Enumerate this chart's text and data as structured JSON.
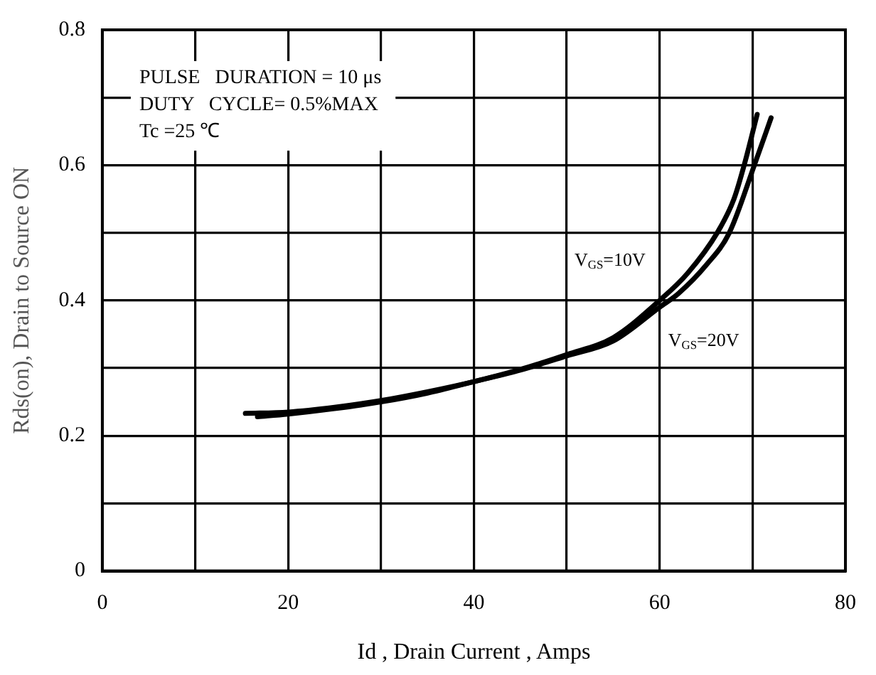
{
  "chart_data": {
    "type": "line",
    "xlabel": "Id , Drain Current , Amps",
    "ylabel": "Rds(on), Drain to Source ON",
    "annotations": [
      "PULSE   DURATION = 10 μs",
      "DUTY   CYCLE= 0.5%MAX",
      "Tc =25 ℃"
    ],
    "xlim": [
      0,
      80
    ],
    "xticks": [
      0,
      {
        "value": 10,
        "label": null
      },
      20,
      {
        "value": 30,
        "label": null
      },
      40,
      {
        "value": 50,
        "label": null
      },
      60,
      {
        "value": 70,
        "label": null
      },
      80
    ],
    "ylim": [
      0,
      0.8
    ],
    "yticks": [
      0,
      {
        "value": 0.1,
        "label": null
      },
      0.2,
      {
        "value": 0.3,
        "label": null
      },
      0.4,
      {
        "value": 0.5,
        "label": null
      },
      0.6,
      {
        "value": 0.7,
        "label": null
      },
      0.8
    ],
    "grid": true,
    "legend": false,
    "marker": "none",
    "line_style": "solid",
    "series": [
      {
        "name": "V$_{GS}$=10V",
        "color": "#000000",
        "x": [
          15.4,
          20,
          25,
          30,
          35,
          40,
          45,
          50,
          55,
          60,
          63,
          66.2,
          68,
          69.1,
          70.5
        ],
        "values": [
          0.233,
          0.235,
          0.242,
          0.252,
          0.265,
          0.28,
          0.298,
          0.32,
          0.345,
          0.4,
          0.44,
          0.5,
          0.55,
          0.6,
          0.675
        ]
      },
      {
        "name": "V$_{GS}$=20V",
        "color": "#000000",
        "x": [
          16.7,
          20,
          25,
          30,
          35,
          40,
          45,
          50,
          55,
          60,
          62,
          65,
          67.5,
          70.2,
          72
        ],
        "values": [
          0.228,
          0.232,
          0.24,
          0.25,
          0.263,
          0.28,
          0.297,
          0.318,
          0.34,
          0.39,
          0.41,
          0.452,
          0.5,
          0.6,
          0.67
        ]
      }
    ]
  }
}
